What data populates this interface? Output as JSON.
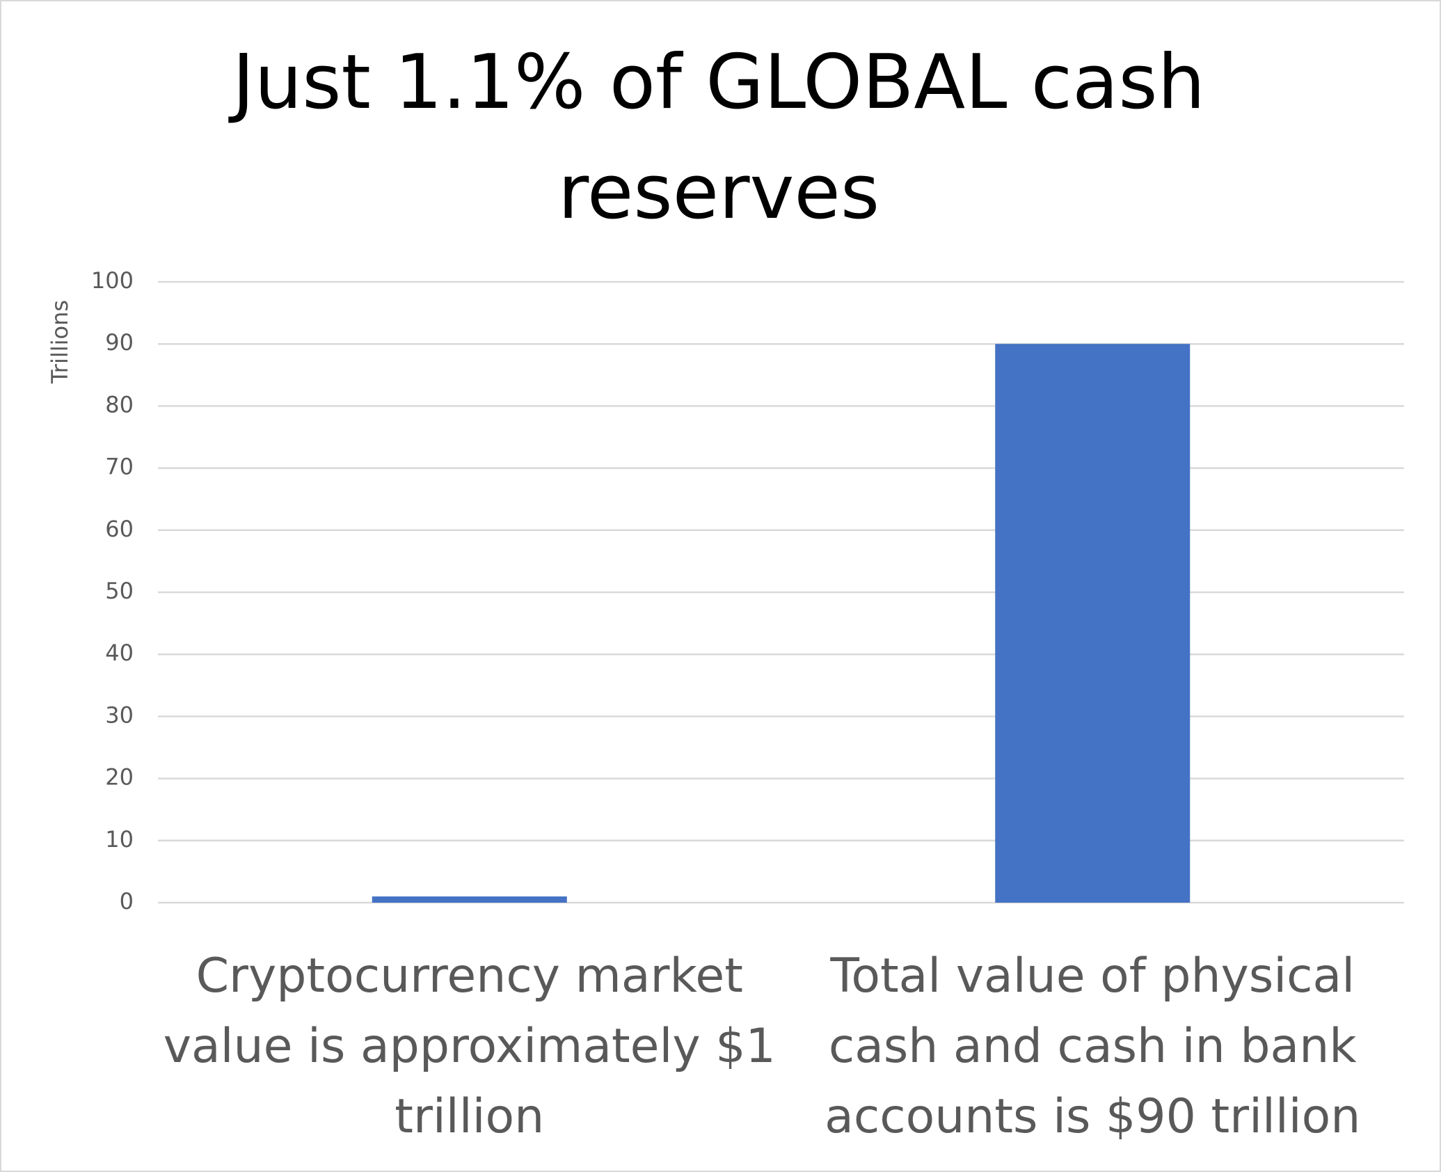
{
  "chart_data": {
    "type": "bar",
    "title": "Just 1.1% of GLOBAL cash reserves",
    "y_label": "Trillions",
    "categories": [
      "Cryptocurrency market value is approximately $1 trillion",
      "Total value of physical cash and cash in bank accounts is $90 trillion"
    ],
    "values": [
      1,
      90
    ],
    "color": "#4472c4",
    "ylim": [
      0,
      100
    ],
    "yticks": [
      0,
      10,
      20,
      30,
      40,
      50,
      60,
      70,
      80,
      90,
      100
    ],
    "grid": true
  }
}
